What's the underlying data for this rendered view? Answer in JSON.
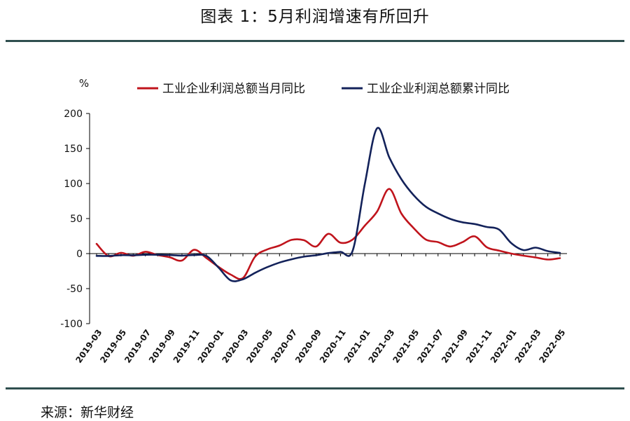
{
  "title": "图表 1：5月利润增速有所回升",
  "source": "来源：新华财经",
  "chart_data": {
    "type": "line",
    "ylabel": "%",
    "ylim": [
      -100,
      200
    ],
    "yticks": [
      200,
      150,
      100,
      50,
      0,
      -50,
      -100
    ],
    "x": [
      "2019-03",
      "2019-04",
      "2019-05",
      "2019-06",
      "2019-07",
      "2019-08",
      "2019-09",
      "2019-10",
      "2019-11",
      "2019-12",
      "2020-01",
      "2020-02",
      "2020-03",
      "2020-04",
      "2020-05",
      "2020-06",
      "2020-07",
      "2020-08",
      "2020-09",
      "2020-10",
      "2020-11",
      "2020-12",
      "2021-01",
      "2021-02",
      "2021-03",
      "2021-04",
      "2021-05",
      "2021-06",
      "2021-07",
      "2021-08",
      "2021-09",
      "2021-10",
      "2021-11",
      "2021-12",
      "2022-01",
      "2022-02",
      "2022-03",
      "2022-04",
      "2022-05"
    ],
    "xtick_labels": [
      "2019-03",
      "2019-05",
      "2019-07",
      "2019-09",
      "2019-11",
      "2020-01",
      "2020-03",
      "2020-05",
      "2020-07",
      "2020-09",
      "2020-11",
      "2021-01",
      "2021-03",
      "2021-05",
      "2021-07",
      "2021-09",
      "2021-11",
      "2022-01",
      "2022-03",
      "2022-05"
    ],
    "legend_position": "top",
    "grid": false,
    "series": [
      {
        "name": "工业企业利润总额当月同比",
        "color": "#c0141c",
        "values": [
          13.9,
          -3.7,
          1.1,
          -3.1,
          2.6,
          -2.0,
          -5.3,
          -9.9,
          5.4,
          -6.3,
          -19.0,
          -30.0,
          -34.9,
          -4.3,
          6.0,
          11.5,
          19.6,
          19.1,
          10.1,
          28.2,
          15.5,
          20.1,
          40.0,
          60.0,
          92.3,
          57.0,
          36.4,
          20.0,
          16.4,
          10.1,
          16.3,
          24.6,
          9.0,
          4.2,
          0.0,
          -3.0,
          -5.5,
          -8.5,
          -6.5
        ]
      },
      {
        "name": "工业企业利润总额累计同比",
        "color": "#13225a",
        "values": [
          -3.3,
          -3.4,
          -2.3,
          -2.4,
          -1.7,
          -1.7,
          -2.1,
          -2.9,
          -2.1,
          -3.3,
          -20.0,
          -38.3,
          -36.7,
          -27.4,
          -19.3,
          -12.8,
          -8.1,
          -4.4,
          -2.4,
          0.7,
          2.4,
          4.1,
          100.0,
          178.9,
          137.3,
          106.0,
          83.4,
          66.9,
          57.3,
          49.5,
          44.7,
          42.2,
          38.0,
          34.3,
          15.0,
          5.0,
          8.5,
          3.5,
          1.0
        ]
      }
    ]
  }
}
